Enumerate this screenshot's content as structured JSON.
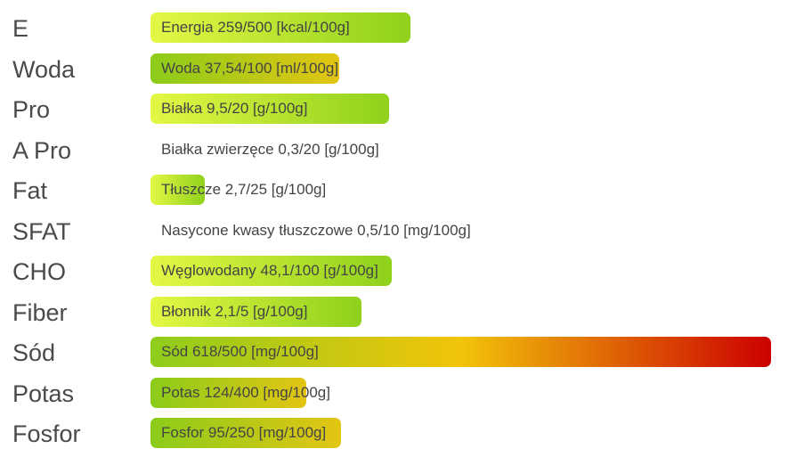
{
  "colors": {
    "under_start": "#e4f745",
    "under_end": "#8fd11c",
    "mid_start": "#8ccc1a",
    "mid_end": "#e3c513",
    "over_start": "#8fcd1c",
    "over_mid": "#f2c40a",
    "over_end": "#cc0000"
  },
  "nutrients": [
    {
      "abbr": "E",
      "label": "Energia 259/500 [kcal/100g]",
      "fill_fraction": 0.518,
      "style": "under"
    },
    {
      "abbr": "Woda",
      "label": "Woda 37,54/100 [ml/100g]",
      "fill_fraction": 0.3754,
      "style": "mid"
    },
    {
      "abbr": "Pro",
      "label": "Białka 9,5/20 [g/100g]",
      "fill_fraction": 0.475,
      "style": "under"
    },
    {
      "abbr": "A Pro",
      "label": "Białka zwierzęce 0,3/20 [g/100g]",
      "fill_fraction": 0.015,
      "style": "none"
    },
    {
      "abbr": "Fat",
      "label": "Tłuszcze 2,7/25 [g/100g]",
      "fill_fraction": 0.108,
      "style": "under"
    },
    {
      "abbr": "SFAT",
      "label": "Nasycone kwasy tłuszczowe 0,5/10 [mg/100g]",
      "fill_fraction": 0.05,
      "style": "none"
    },
    {
      "abbr": "CHO",
      "label": "Węglowodany 48,1/100 [g/100g]",
      "fill_fraction": 0.481,
      "style": "under"
    },
    {
      "abbr": "Fiber",
      "label": "Błonnik 2,1/5 [g/100g]",
      "fill_fraction": 0.42,
      "style": "under"
    },
    {
      "abbr": "Sód",
      "label": "Sód 618/500 [mg/100g]",
      "fill_fraction": 1.236,
      "style": "over"
    },
    {
      "abbr": "Potas",
      "label": "Potas 124/400 [mg/100g]",
      "fill_fraction": 0.31,
      "style": "mid"
    },
    {
      "abbr": "Fosfor",
      "label": "Fosfor 95/250 [mg/100g]",
      "fill_fraction": 0.38,
      "style": "mid"
    }
  ]
}
